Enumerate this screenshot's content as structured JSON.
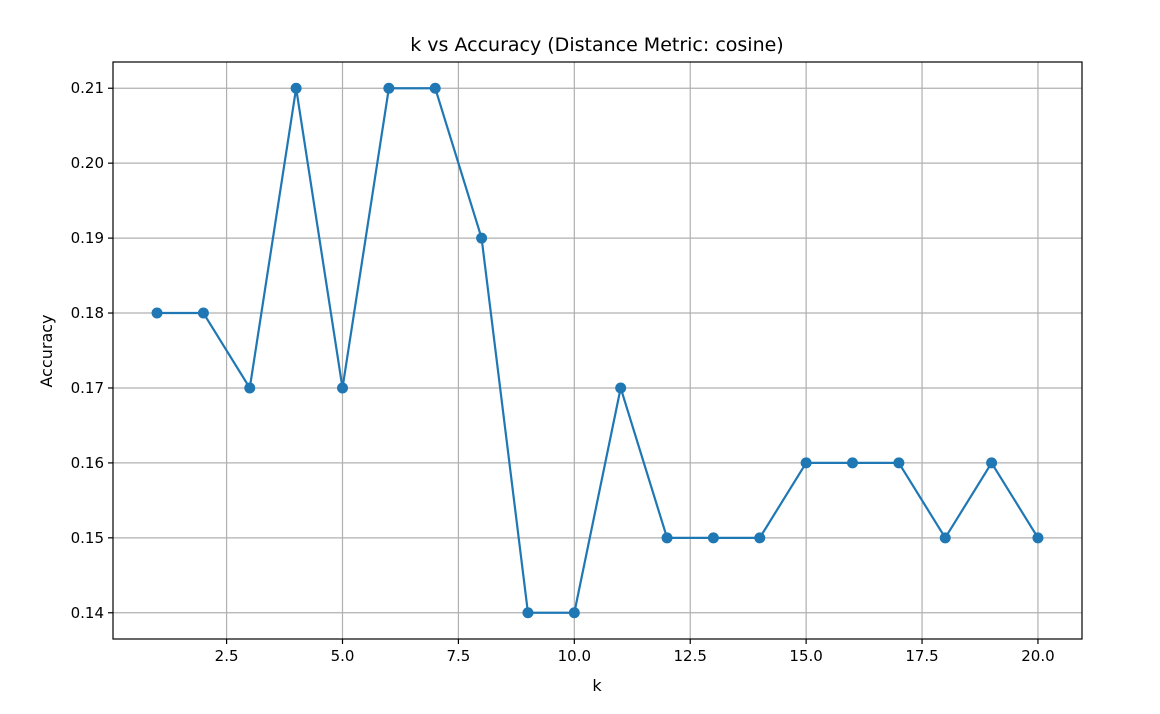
{
  "chart_data": {
    "type": "line",
    "title": "k vs Accuracy (Distance Metric: cosine)",
    "xlabel": "k",
    "ylabel": "Accuracy",
    "xlim": [
      0.05,
      20.95
    ],
    "ylim": [
      0.1365,
      0.2135
    ],
    "xticks": [
      2.5,
      5.0,
      7.5,
      10.0,
      12.5,
      15.0,
      17.5,
      20.0
    ],
    "xtick_labels": [
      "2.5",
      "5.0",
      "7.5",
      "10.0",
      "12.5",
      "15.0",
      "17.5",
      "20.0"
    ],
    "yticks": [
      0.14,
      0.15,
      0.16,
      0.17,
      0.18,
      0.19,
      0.2,
      0.21
    ],
    "ytick_labels": [
      "0.14",
      "0.15",
      "0.16",
      "0.17",
      "0.18",
      "0.19",
      "0.20",
      "0.21"
    ],
    "grid": true,
    "marker": "circle",
    "color": "#1f77b4",
    "x": [
      1,
      2,
      3,
      4,
      5,
      6,
      7,
      8,
      9,
      10,
      11,
      12,
      13,
      14,
      15,
      16,
      17,
      18,
      19,
      20
    ],
    "series": [
      {
        "values": [
          0.18,
          0.18,
          0.17,
          0.21,
          0.17,
          0.21,
          0.21,
          0.19,
          0.14,
          0.14,
          0.17,
          0.15,
          0.15,
          0.15,
          0.16,
          0.16,
          0.16,
          0.15,
          0.16,
          0.15
        ]
      }
    ]
  }
}
